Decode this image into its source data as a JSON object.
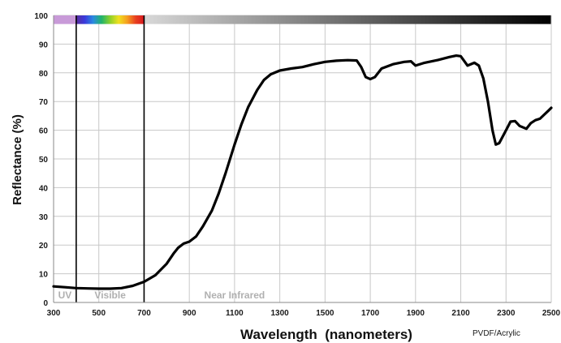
{
  "chart_data": {
    "type": "line",
    "xlabel": "Wavelength  (nanometers)",
    "ylabel": "Reflectance (%)",
    "xlim": [
      300,
      2500
    ],
    "ylim": [
      0,
      100
    ],
    "x_ticks": [
      300,
      500,
      700,
      900,
      1100,
      1300,
      1500,
      1700,
      1900,
      2100,
      2300,
      2500
    ],
    "y_ticks": [
      0,
      10,
      20,
      30,
      40,
      50,
      60,
      70,
      80,
      90,
      100
    ],
    "grid": true,
    "band_boundaries": [
      400,
      700
    ],
    "band_labels": [
      {
        "text": "UV",
        "x": 350
      },
      {
        "text": "Visible",
        "x": 550
      },
      {
        "text": "Near Infrared",
        "x": 1100
      }
    ],
    "annotation": "PVDF/Acrylic",
    "colors": {
      "line": "#000000",
      "grid": "#c8c8c8",
      "uv_band": "#c89ad8",
      "visible_spectrum": [
        "#5a2d9c",
        "#3a3adc",
        "#2a8ae0",
        "#22b46a",
        "#8ed02a",
        "#f0e020",
        "#f5a020",
        "#e84020",
        "#d81820"
      ],
      "nir_gradient": [
        "#d8d8d8",
        "#000000"
      ]
    },
    "series": [
      {
        "points": [
          [
            300,
            5.6
          ],
          [
            350,
            5.3
          ],
          [
            400,
            5.0
          ],
          [
            450,
            4.9
          ],
          [
            500,
            4.8
          ],
          [
            550,
            4.8
          ],
          [
            600,
            5.0
          ],
          [
            650,
            5.8
          ],
          [
            700,
            7.2
          ],
          [
            750,
            9.5
          ],
          [
            800,
            13.5
          ],
          [
            830,
            17.0
          ],
          [
            850,
            19.0
          ],
          [
            875,
            20.5
          ],
          [
            900,
            21.2
          ],
          [
            930,
            23.0
          ],
          [
            960,
            26.5
          ],
          [
            1000,
            32.0
          ],
          [
            1030,
            38.0
          ],
          [
            1060,
            45.0
          ],
          [
            1100,
            55.0
          ],
          [
            1130,
            62.0
          ],
          [
            1160,
            68.0
          ],
          [
            1200,
            74.0
          ],
          [
            1230,
            77.5
          ],
          [
            1260,
            79.5
          ],
          [
            1300,
            80.8
          ],
          [
            1350,
            81.5
          ],
          [
            1400,
            82.0
          ],
          [
            1450,
            83.0
          ],
          [
            1500,
            83.8
          ],
          [
            1550,
            84.2
          ],
          [
            1600,
            84.4
          ],
          [
            1640,
            84.3
          ],
          [
            1660,
            82.0
          ],
          [
            1680,
            78.5
          ],
          [
            1700,
            77.8
          ],
          [
            1720,
            78.5
          ],
          [
            1750,
            81.5
          ],
          [
            1800,
            83.0
          ],
          [
            1850,
            83.8
          ],
          [
            1880,
            84.0
          ],
          [
            1900,
            82.5
          ],
          [
            1940,
            83.5
          ],
          [
            2000,
            84.5
          ],
          [
            2050,
            85.5
          ],
          [
            2080,
            86.0
          ],
          [
            2100,
            85.8
          ],
          [
            2130,
            82.5
          ],
          [
            2160,
            83.5
          ],
          [
            2180,
            82.5
          ],
          [
            2200,
            78.0
          ],
          [
            2220,
            70.0
          ],
          [
            2240,
            60.0
          ],
          [
            2255,
            55.0
          ],
          [
            2270,
            55.5
          ],
          [
            2300,
            60.0
          ],
          [
            2320,
            63.0
          ],
          [
            2340,
            63.2
          ],
          [
            2360,
            61.5
          ],
          [
            2390,
            60.5
          ],
          [
            2410,
            62.5
          ],
          [
            2430,
            63.5
          ],
          [
            2450,
            64.0
          ],
          [
            2470,
            65.5
          ],
          [
            2490,
            67.0
          ],
          [
            2500,
            67.8
          ]
        ]
      }
    ]
  }
}
